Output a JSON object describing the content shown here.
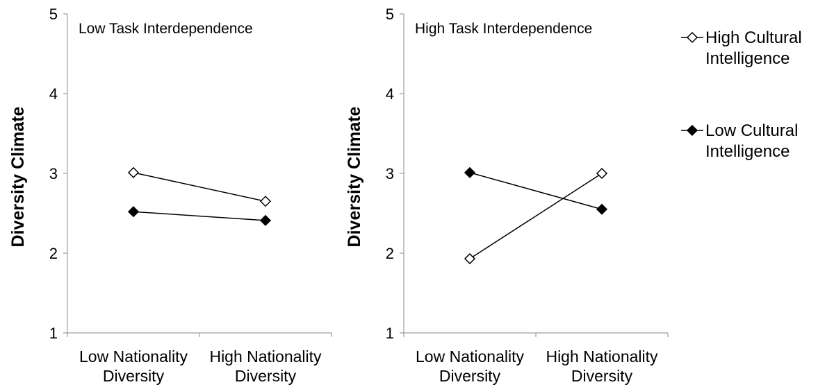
{
  "chart_data": [
    {
      "type": "line",
      "title": "Low Task Interdependence",
      "ylabel": "Diversity Climate",
      "ylim": [
        1,
        5
      ],
      "yticks": [
        "1",
        "2",
        "3",
        "4",
        "5"
      ],
      "categories": [
        "Low Nationality Diversity",
        "High Nationality Diversity"
      ],
      "category_lines": [
        [
          "Low Nationality",
          "Diversity"
        ],
        [
          "High Nationality",
          "Diversity"
        ]
      ],
      "series": [
        {
          "name": "High Cultural Intelligence",
          "marker": "open-diamond",
          "values": [
            3.01,
            2.65
          ]
        },
        {
          "name": "Low Cultural Intelligence",
          "marker": "filled-diamond",
          "values": [
            2.52,
            2.41
          ]
        }
      ],
      "grid": false
    },
    {
      "type": "line",
      "title": "High Task Interdependence",
      "ylabel": "Diversity Climate",
      "ylim": [
        1,
        5
      ],
      "yticks": [
        "1",
        "2",
        "3",
        "4",
        "5"
      ],
      "categories": [
        "Low Nationality Diversity",
        "High Nationality Diversity"
      ],
      "category_lines": [
        [
          "Low Nationality",
          "Diversity"
        ],
        [
          "High Nationality",
          "Diversity"
        ]
      ],
      "series": [
        {
          "name": "High Cultural Intelligence",
          "marker": "open-diamond",
          "values": [
            1.93,
            3.0
          ]
        },
        {
          "name": "Low Cultural Intelligence",
          "marker": "filled-diamond",
          "values": [
            3.01,
            2.55
          ]
        }
      ],
      "grid": false
    }
  ],
  "legend": {
    "placement": "right",
    "items": [
      {
        "lines": [
          "High Cultural",
          "Intelligence"
        ],
        "marker": "open-diamond"
      },
      {
        "lines": [
          "Low Cultural",
          "Intelligence"
        ],
        "marker": "filled-diamond"
      }
    ]
  },
  "colors": {
    "line": "#000000",
    "axis": "#888888",
    "open_fill": "#ffffff",
    "filled_fill": "#000000"
  }
}
